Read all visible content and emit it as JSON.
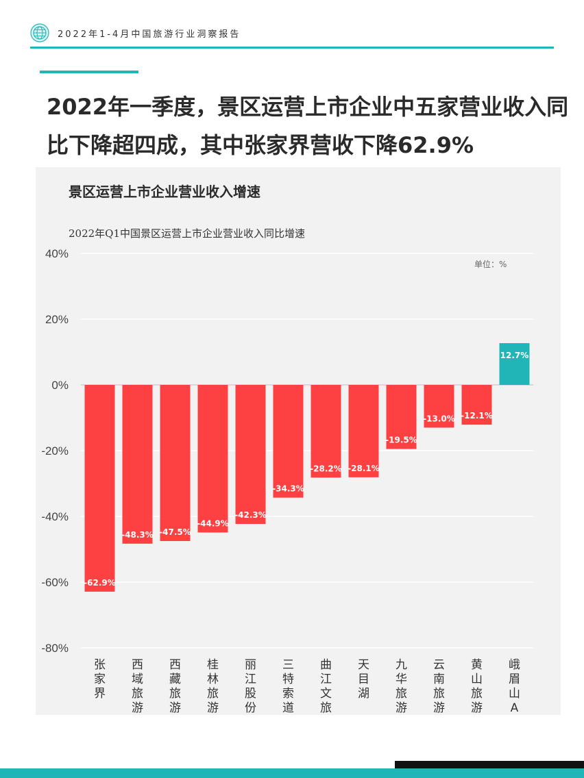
{
  "header": {
    "doc_title": "2022年1-4月中国旅游行业洞察报告"
  },
  "headline": "2022年一季度，景区运营上市企业中五家营业收入同\n比下降超四成，其中张家界营收下降62.9%",
  "panel": {
    "title": "景区运营上市企业营业收入增速"
  },
  "colors": {
    "accent": "#21b5b8",
    "negative": "#fd4041",
    "positive": "#21b5b8"
  },
  "chart_data": {
    "type": "bar",
    "title": "2022年Q1中国景区运营上市企业营业收入同比增速",
    "unit_label": "单位：%",
    "categories": [
      "张家界",
      "西域旅游",
      "西藏旅游",
      "桂林旅游",
      "丽江股份",
      "三特索道",
      "曲江文旅",
      "天目湖",
      "九华旅游",
      "云南旅游",
      "黄山旅游",
      "峨眉山A"
    ],
    "values": [
      -62.9,
      -48.3,
      -47.5,
      -44.9,
      -42.3,
      -34.3,
      -28.2,
      -28.1,
      -19.5,
      -13.0,
      -12.1,
      12.7
    ],
    "data_labels": [
      "-62.9%",
      "-48.3%",
      "-47.5%",
      "-44.9%",
      "-42.3%",
      "-34.3%",
      "-28.2%",
      "-28.1%",
      "-19.5%",
      "-13.0%",
      "-12.1%",
      "12.7%"
    ],
    "yticks": [
      40,
      20,
      0,
      -20,
      -40,
      -60,
      -80
    ],
    "ytick_labels": [
      "40%",
      "20%",
      "0%",
      "-20%",
      "-40%",
      "-60%",
      "-80%"
    ],
    "ylim": [
      -80,
      40
    ],
    "grid": true
  }
}
